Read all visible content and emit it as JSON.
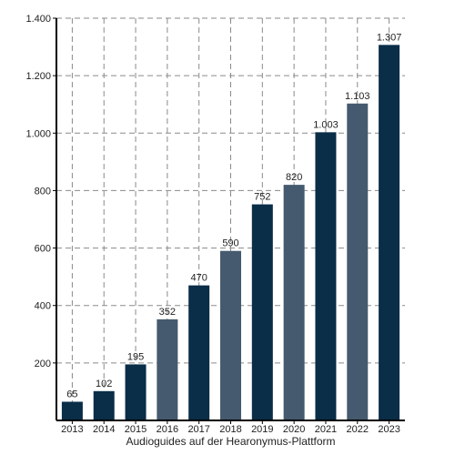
{
  "chart_data": {
    "type": "bar",
    "categories": [
      "2013",
      "2014",
      "2015",
      "2016",
      "2017",
      "2018",
      "2019",
      "2020",
      "2021",
      "2022",
      "2023"
    ],
    "values": [
      65,
      102,
      195,
      352,
      470,
      590,
      752,
      820,
      1003,
      1103,
      1307
    ],
    "value_labels": [
      "65",
      "102",
      "195",
      "352",
      "470",
      "590",
      "752",
      "820",
      "1.003",
      "1.103",
      "1.307"
    ],
    "xlabel": "Audioguides auf der Hearonymus-Plattform",
    "ylabel": "",
    "ylim": [
      0,
      1400
    ],
    "yticks": [
      200,
      400,
      600,
      800,
      1000,
      1200,
      1400
    ],
    "ytick_labels": [
      "200",
      "400",
      "600",
      "800",
      "1.000",
      "1.200",
      "1.400"
    ],
    "grid": true,
    "legend": "none",
    "colors": {
      "dark": "#0a2d48",
      "light": "#455a6e",
      "grid": "#8a8a8a",
      "axis": "#000000"
    },
    "bar_color_pattern": [
      "dark",
      "dark",
      "dark",
      "light",
      "dark",
      "light",
      "dark",
      "light",
      "dark",
      "light",
      "dark"
    ]
  }
}
